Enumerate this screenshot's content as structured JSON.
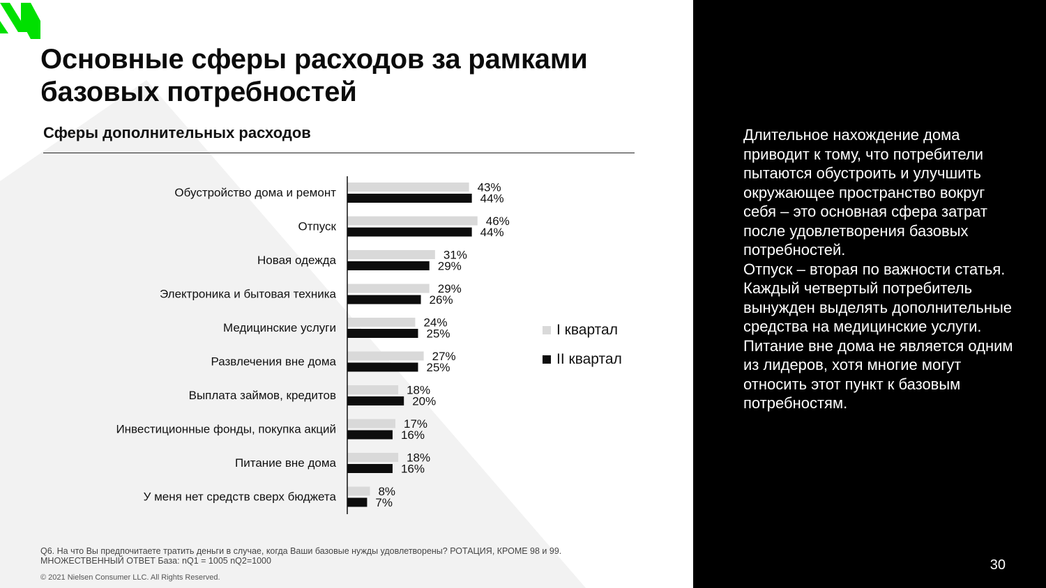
{
  "title": "Основные сферы расходов за рамками базовых потребностей",
  "colors": {
    "q1": "#d9d9d9",
    "q2": "#0d0d0d",
    "logo": "#00e000",
    "background_triangle": "#f2f2f2",
    "panel": "#000000"
  },
  "chart_data": {
    "type": "bar",
    "orientation": "horizontal",
    "title": "Сферы дополнительных расходов",
    "categories": [
      "Обустройство дома и ремонт",
      "Отпуск",
      "Новая одежда",
      "Электроника и бытовая техника",
      "Медицинские услуги",
      "Развлечения вне дома",
      "Выплата займов, кредитов",
      "Инвестиционные фонды, покупка акций",
      "Питание вне дома",
      "У меня нет средств сверх бюджета"
    ],
    "series": [
      {
        "name": "I квартал",
        "values": [
          43,
          46,
          31,
          29,
          24,
          27,
          18,
          17,
          18,
          8
        ],
        "labels": [
          "43%",
          "46%",
          "31%",
          "29%",
          "24%",
          "27%",
          "18%",
          "17%",
          "18%",
          "8%"
        ]
      },
      {
        "name": "II квартал",
        "values": [
          44,
          44,
          29,
          26,
          25,
          25,
          20,
          16,
          16,
          7
        ],
        "labels": [
          "44%",
          "44%",
          "29%",
          "26%",
          "25%",
          "25%",
          "20%",
          "16%",
          "16%",
          "7%"
        ]
      }
    ],
    "xlim": [
      0,
      100
    ],
    "grid": false,
    "legend_position": "right"
  },
  "footnote": {
    "line1": "Q6.  На что Вы предпочитаете тратить деньги в случае, когда Ваши базовые нужды удовлетворены? РОТАЦИЯ, КРОМЕ 98 и 99.",
    "line2": "МНОЖЕСТВЕННЫЙ ОТВЕТ База: nQ1 = 1005 nQ2=1000"
  },
  "copyright": "© 2021 Nielsen Consumer LLC. All Rights Reserved.",
  "right_panel": {
    "paragraph1": "Длительное нахождение дома приводит к тому, что потребители пытаются обустроить и улучшить окружающее пространство вокруг себя – это основная сфера затрат после удовлетворения базовых потребностей.",
    "paragraph2": "Отпуск – вторая по важности статья. Каждый четвертый потребитель вынужден выделять дополнительные средства на медицинские услуги. Питание вне дома не является одним из лидеров, хотя многие могут относить этот пункт к базовым потребностям."
  },
  "page_number": "30"
}
